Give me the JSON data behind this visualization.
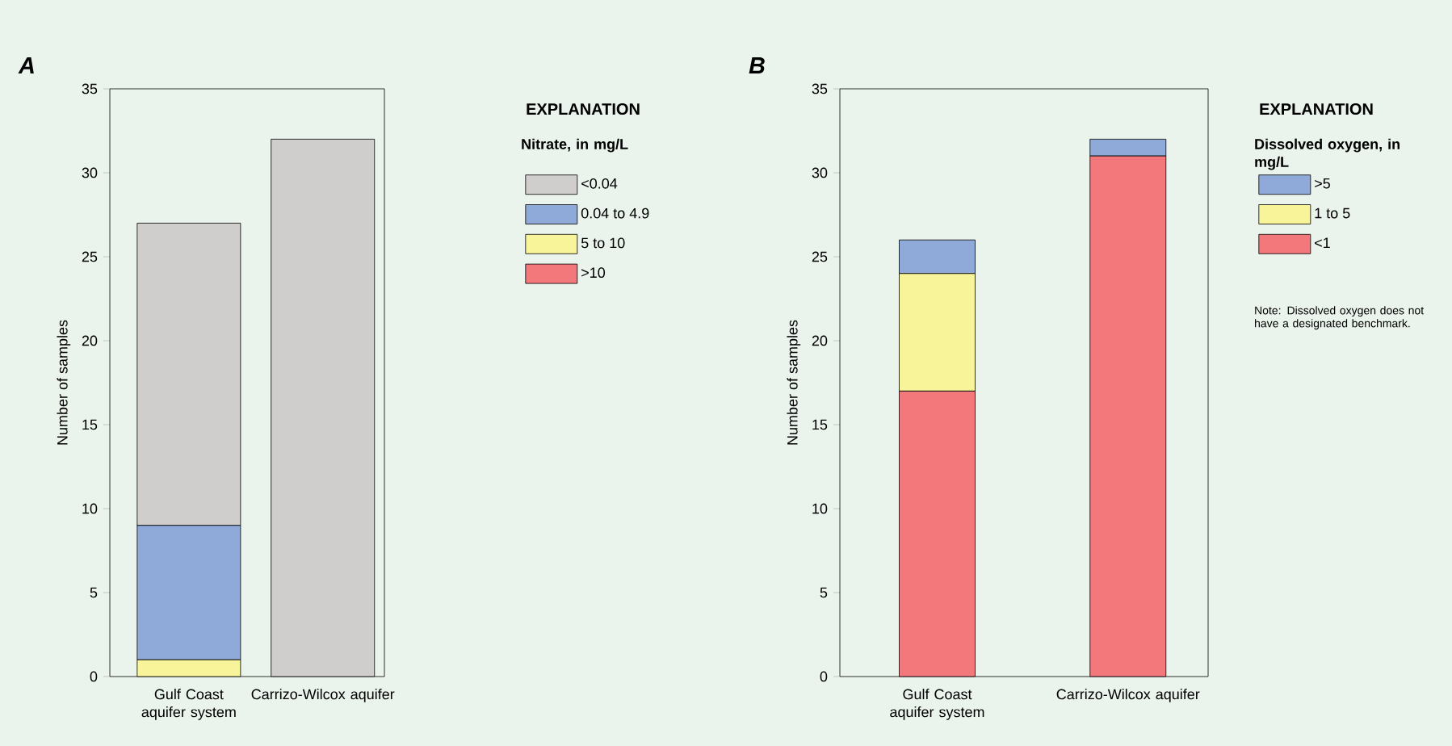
{
  "chart_data": [
    {
      "type": "bar",
      "stacked": true,
      "title": "A",
      "ylabel": "Number of samples",
      "categories": [
        "Gulf Coast aquifer system",
        "Carrizo-Wilcox aquifer"
      ],
      "ylim": [
        0,
        35
      ],
      "yticks": [
        0,
        5,
        10,
        15,
        20,
        25,
        30,
        35
      ],
      "legend": "right",
      "legend_title": "Nitrate, in mg/L",
      "annotations": [
        "EXPLANATION"
      ],
      "series": [
        {
          "name": ">10",
          "color": "#f2787c",
          "values": [
            0,
            0
          ]
        },
        {
          "name": "5 to 10",
          "color": "#f8f49a",
          "values": [
            1,
            0
          ]
        },
        {
          "name": "0.04 to 4.9",
          "color": "#8faad9",
          "values": [
            8,
            0
          ]
        },
        {
          "name": "<0.04",
          "color": "#d0cecd",
          "values": [
            18,
            32
          ]
        }
      ]
    },
    {
      "type": "bar",
      "stacked": true,
      "title": "B",
      "ylabel": "Number of samples",
      "categories": [
        "Gulf Coast aquifer system",
        "Carrizo-Wilcox aquifer"
      ],
      "ylim": [
        0,
        35
      ],
      "yticks": [
        0,
        5,
        10,
        15,
        20,
        25,
        30,
        35
      ],
      "legend": "right",
      "legend_title": "Dissolved oxygen, in mg/L",
      "annotations": [
        "EXPLANATION",
        "Note: Dissolved oxygen does not have a designated benchmark."
      ],
      "series": [
        {
          "name": "<1",
          "color": "#f2787c",
          "values": [
            17,
            31
          ]
        },
        {
          "name": "1 to 5",
          "color": "#f8f49a",
          "values": [
            7,
            0
          ]
        },
        {
          "name": ">5",
          "color": "#8faad9",
          "values": [
            2,
            1
          ]
        }
      ]
    }
  ]
}
